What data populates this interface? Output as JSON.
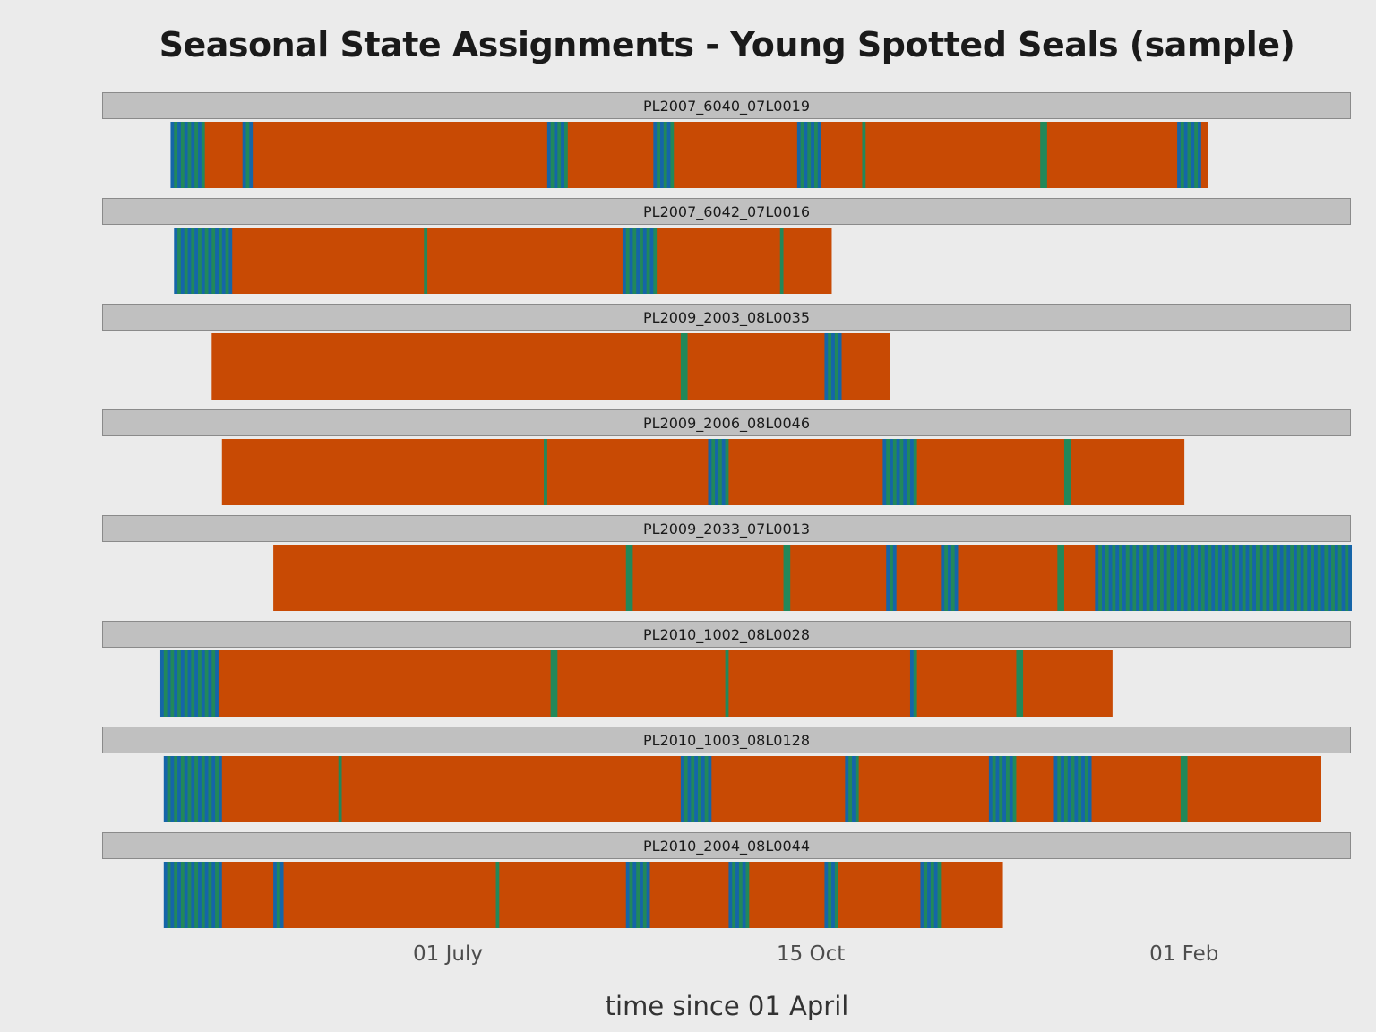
{
  "chart_data": {
    "type": "timeline",
    "title": "Seasonal State Assignments - Young Spotted Seals (sample)",
    "xlabel": "time since 01 April",
    "x_unit": "days since 01 April",
    "xlim": [
      -10,
      355
    ],
    "x_ticks": [
      {
        "value": 91,
        "label": "01 July"
      },
      {
        "value": 197,
        "label": "15 Oct"
      },
      {
        "value": 306,
        "label": "01 Feb"
      }
    ],
    "state_colors": {
      "orange": "#c84a04",
      "blue": "#1565a8",
      "green": "#22885a"
    },
    "panels": [
      {
        "id": "PL2007_6040_07L0019",
        "start": 10,
        "end": 313,
        "segments": [
          {
            "from": 10,
            "to": 20,
            "state": "alt"
          },
          {
            "from": 20,
            "to": 31,
            "state": "orange"
          },
          {
            "from": 31,
            "to": 34,
            "state": "alt"
          },
          {
            "from": 34,
            "to": 120,
            "state": "orange"
          },
          {
            "from": 120,
            "to": 126,
            "state": "alt"
          },
          {
            "from": 126,
            "to": 151,
            "state": "orange"
          },
          {
            "from": 151,
            "to": 157,
            "state": "alt"
          },
          {
            "from": 157,
            "to": 193,
            "state": "orange"
          },
          {
            "from": 193,
            "to": 200,
            "state": "alt"
          },
          {
            "from": 200,
            "to": 212,
            "state": "orange"
          },
          {
            "from": 212,
            "to": 213,
            "state": "green"
          },
          {
            "from": 213,
            "to": 264,
            "state": "orange"
          },
          {
            "from": 264,
            "to": 266,
            "state": "green"
          },
          {
            "from": 266,
            "to": 304,
            "state": "orange"
          },
          {
            "from": 304,
            "to": 311,
            "state": "alt"
          },
          {
            "from": 311,
            "to": 313,
            "state": "orange"
          }
        ]
      },
      {
        "id": "PL2007_6042_07L0016",
        "start": 11,
        "end": 203,
        "segments": [
          {
            "from": 11,
            "to": 28,
            "state": "alt"
          },
          {
            "from": 28,
            "to": 84,
            "state": "orange"
          },
          {
            "from": 84,
            "to": 85,
            "state": "green"
          },
          {
            "from": 85,
            "to": 142,
            "state": "orange"
          },
          {
            "from": 142,
            "to": 152,
            "state": "alt"
          },
          {
            "from": 152,
            "to": 188,
            "state": "orange"
          },
          {
            "from": 188,
            "to": 189,
            "state": "green"
          },
          {
            "from": 189,
            "to": 203,
            "state": "orange"
          }
        ]
      },
      {
        "id": "PL2009_2003_08L0035",
        "start": 22,
        "end": 220,
        "segments": [
          {
            "from": 22,
            "to": 159,
            "state": "orange"
          },
          {
            "from": 159,
            "to": 161,
            "state": "green"
          },
          {
            "from": 161,
            "to": 201,
            "state": "orange"
          },
          {
            "from": 201,
            "to": 206,
            "state": "alt"
          },
          {
            "from": 206,
            "to": 220,
            "state": "orange"
          }
        ]
      },
      {
        "id": "PL2009_2006_08L0046",
        "start": 25,
        "end": 306,
        "segments": [
          {
            "from": 25,
            "to": 119,
            "state": "orange"
          },
          {
            "from": 119,
            "to": 120,
            "state": "green"
          },
          {
            "from": 120,
            "to": 167,
            "state": "orange"
          },
          {
            "from": 167,
            "to": 173,
            "state": "alt"
          },
          {
            "from": 173,
            "to": 218,
            "state": "orange"
          },
          {
            "from": 218,
            "to": 228,
            "state": "alt"
          },
          {
            "from": 228,
            "to": 271,
            "state": "orange"
          },
          {
            "from": 271,
            "to": 273,
            "state": "green"
          },
          {
            "from": 273,
            "to": 306,
            "state": "orange"
          }
        ]
      },
      {
        "id": "PL2009_2033_07L0013",
        "start": 40,
        "end": 371,
        "segments": [
          {
            "from": 40,
            "to": 143,
            "state": "orange"
          },
          {
            "from": 143,
            "to": 145,
            "state": "green"
          },
          {
            "from": 145,
            "to": 189,
            "state": "orange"
          },
          {
            "from": 189,
            "to": 191,
            "state": "green"
          },
          {
            "from": 191,
            "to": 219,
            "state": "orange"
          },
          {
            "from": 219,
            "to": 222,
            "state": "alt"
          },
          {
            "from": 222,
            "to": 235,
            "state": "orange"
          },
          {
            "from": 235,
            "to": 240,
            "state": "alt"
          },
          {
            "from": 240,
            "to": 269,
            "state": "orange"
          },
          {
            "from": 269,
            "to": 271,
            "state": "green"
          },
          {
            "from": 271,
            "to": 280,
            "state": "orange"
          },
          {
            "from": 280,
            "to": 371,
            "state": "alt"
          }
        ]
      },
      {
        "id": "PL2010_1002_08L0028",
        "start": 7,
        "end": 285,
        "segments": [
          {
            "from": 7,
            "to": 24,
            "state": "alt"
          },
          {
            "from": 24,
            "to": 121,
            "state": "orange"
          },
          {
            "from": 121,
            "to": 123,
            "state": "green"
          },
          {
            "from": 123,
            "to": 172,
            "state": "orange"
          },
          {
            "from": 172,
            "to": 173,
            "state": "green"
          },
          {
            "from": 173,
            "to": 226,
            "state": "orange"
          },
          {
            "from": 226,
            "to": 228,
            "state": "alt"
          },
          {
            "from": 228,
            "to": 257,
            "state": "orange"
          },
          {
            "from": 257,
            "to": 259,
            "state": "green"
          },
          {
            "from": 259,
            "to": 285,
            "state": "orange"
          }
        ]
      },
      {
        "id": "PL2010_1003_08L0128",
        "start": 8,
        "end": 346,
        "segments": [
          {
            "from": 8,
            "to": 25,
            "state": "alt"
          },
          {
            "from": 25,
            "to": 59,
            "state": "orange"
          },
          {
            "from": 59,
            "to": 60,
            "state": "green"
          },
          {
            "from": 60,
            "to": 159,
            "state": "orange"
          },
          {
            "from": 159,
            "to": 168,
            "state": "alt"
          },
          {
            "from": 168,
            "to": 207,
            "state": "orange"
          },
          {
            "from": 207,
            "to": 211,
            "state": "alt"
          },
          {
            "from": 211,
            "to": 249,
            "state": "orange"
          },
          {
            "from": 249,
            "to": 257,
            "state": "alt"
          },
          {
            "from": 257,
            "to": 268,
            "state": "orange"
          },
          {
            "from": 268,
            "to": 279,
            "state": "alt"
          },
          {
            "from": 279,
            "to": 305,
            "state": "orange"
          },
          {
            "from": 305,
            "to": 307,
            "state": "green"
          },
          {
            "from": 307,
            "to": 346,
            "state": "orange"
          }
        ]
      },
      {
        "id": "PL2010_2004_08L0044",
        "start": 8,
        "end": 253,
        "segments": [
          {
            "from": 8,
            "to": 25,
            "state": "alt"
          },
          {
            "from": 25,
            "to": 40,
            "state": "orange"
          },
          {
            "from": 40,
            "to": 43,
            "state": "alt"
          },
          {
            "from": 43,
            "to": 105,
            "state": "orange"
          },
          {
            "from": 105,
            "to": 106,
            "state": "green"
          },
          {
            "from": 106,
            "to": 143,
            "state": "orange"
          },
          {
            "from": 143,
            "to": 150,
            "state": "alt"
          },
          {
            "from": 150,
            "to": 173,
            "state": "orange"
          },
          {
            "from": 173,
            "to": 179,
            "state": "alt"
          },
          {
            "from": 179,
            "to": 201,
            "state": "orange"
          },
          {
            "from": 201,
            "to": 205,
            "state": "alt"
          },
          {
            "from": 205,
            "to": 229,
            "state": "orange"
          },
          {
            "from": 229,
            "to": 235,
            "state": "alt"
          },
          {
            "from": 235,
            "to": 253,
            "state": "orange"
          }
        ]
      }
    ]
  }
}
